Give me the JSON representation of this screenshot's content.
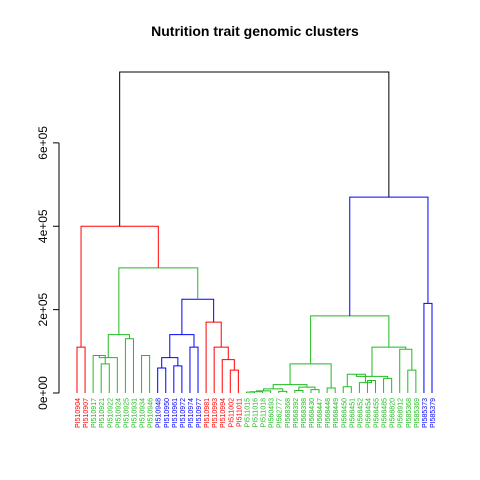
{
  "chart_data": {
    "type": "dendrogram",
    "title": "Nutrition trait genomic clusters",
    "ylim": [
      0,
      780000
    ],
    "y_ticks": [
      {
        "value": 0,
        "label": "0e+00"
      },
      {
        "value": 200000,
        "label": "2e+05"
      },
      {
        "value": 400000,
        "label": "4e+05"
      },
      {
        "value": 600000,
        "label": "6e+05"
      }
    ],
    "colors": {
      "red": "#ff0000",
      "green": "#22bb22",
      "blue": "#0000ff",
      "black": "#000000"
    },
    "leaves": [
      {
        "label": "PI510904",
        "color": "red"
      },
      {
        "label": "PI510907",
        "color": "red"
      },
      {
        "label": "PI510917",
        "color": "green"
      },
      {
        "label": "PI510921",
        "color": "green"
      },
      {
        "label": "PI510922",
        "color": "green"
      },
      {
        "label": "PI510924",
        "color": "green"
      },
      {
        "label": "PI510925",
        "color": "green"
      },
      {
        "label": "PI510931",
        "color": "green"
      },
      {
        "label": "PI510934",
        "color": "green"
      },
      {
        "label": "PI510946",
        "color": "green"
      },
      {
        "label": "PI510948",
        "color": "blue"
      },
      {
        "label": "PI510950",
        "color": "blue"
      },
      {
        "label": "PI510961",
        "color": "blue"
      },
      {
        "label": "PI510972",
        "color": "blue"
      },
      {
        "label": "PI510974",
        "color": "blue"
      },
      {
        "label": "PI510977",
        "color": "blue"
      },
      {
        "label": "PI510981",
        "color": "red"
      },
      {
        "label": "PI510993",
        "color": "red"
      },
      {
        "label": "PI510994",
        "color": "red"
      },
      {
        "label": "PI511002",
        "color": "red"
      },
      {
        "label": "PI511011",
        "color": "red"
      },
      {
        "label": "PI511015",
        "color": "green"
      },
      {
        "label": "PI511016",
        "color": "green"
      },
      {
        "label": "PI511018",
        "color": "green"
      },
      {
        "label": "PI560493",
        "color": "green"
      },
      {
        "label": "PI562777",
        "color": "green"
      },
      {
        "label": "PI568368",
        "color": "green"
      },
      {
        "label": "PI568392",
        "color": "green"
      },
      {
        "label": "PI568398",
        "color": "green"
      },
      {
        "label": "PI568430",
        "color": "green"
      },
      {
        "label": "PI568447",
        "color": "green"
      },
      {
        "label": "PI568448",
        "color": "green"
      },
      {
        "label": "PI568449",
        "color": "green"
      },
      {
        "label": "PI568450",
        "color": "green"
      },
      {
        "label": "PI568451",
        "color": "green"
      },
      {
        "label": "PI568452",
        "color": "green"
      },
      {
        "label": "PI568454",
        "color": "green"
      },
      {
        "label": "PI568455",
        "color": "green"
      },
      {
        "label": "PI568485",
        "color": "green"
      },
      {
        "label": "PI568820",
        "color": "green"
      },
      {
        "label": "PI568912",
        "color": "green"
      },
      {
        "label": "PI585368",
        "color": "green"
      },
      {
        "label": "PI585369",
        "color": "green"
      },
      {
        "label": "PI585373",
        "color": "blue"
      },
      {
        "label": "PI585379",
        "color": "blue"
      }
    ],
    "merges": [
      {
        "a": 0,
        "b": 1,
        "height": 110000,
        "color": "red"
      },
      {
        "a": 3,
        "b": 4,
        "height": 70000,
        "color": "green"
      },
      {
        "a": 2,
        "b": "m:1",
        "height": 90000,
        "color": "green"
      },
      {
        "a": 5,
        "b": "m:2",
        "height": 85000,
        "color": "green"
      },
      {
        "a": 6,
        "b": 7,
        "height": 130000,
        "color": "green"
      },
      {
        "a": 8,
        "b": 9,
        "height": 90000,
        "color": "green"
      },
      {
        "a": 8,
        "b": 9,
        "height": 0,
        "color": "green",
        "skip": true
      },
      {
        "a": "m:3",
        "b": "m:4",
        "height": 140000,
        "color": "green"
      },
      {
        "a": 10,
        "b": 11,
        "height": 60000,
        "color": "blue"
      },
      {
        "a": 12,
        "b": 13,
        "height": 65000,
        "color": "blue"
      },
      {
        "a": "m:8",
        "b": "m:9",
        "height": 85000,
        "color": "blue"
      },
      {
        "a": 14,
        "b": 15,
        "height": 110000,
        "color": "blue"
      },
      {
        "a": "m:10",
        "b": "m:11",
        "height": 140000,
        "color": "blue"
      },
      {
        "a": 19,
        "b": 20,
        "height": 55000,
        "color": "red"
      },
      {
        "a": 18,
        "b": "m:13",
        "height": 80000,
        "color": "red"
      },
      {
        "a": 17,
        "b": "m:14",
        "height": 110000,
        "color": "red"
      },
      {
        "a": 16,
        "b": "m:15",
        "height": 170000,
        "color": "red"
      },
      {
        "a": "m:12",
        "b": "m:16",
        "height": 225000,
        "color": "blue"
      },
      {
        "a": "m:7",
        "b": "m:17",
        "height": 300000,
        "color": "green"
      },
      {
        "a": "m:0",
        "b": "m:18",
        "height": 400000,
        "color": "red"
      },
      {
        "a": 21,
        "b": 22,
        "height": 2000,
        "color": "green"
      },
      {
        "a": 23,
        "b": "m:20",
        "height": 3000,
        "color": "green"
      },
      {
        "a": 24,
        "b": "m:21",
        "height": 5000,
        "color": "green"
      },
      {
        "a": 25,
        "b": 26,
        "height": 4000,
        "color": "green"
      },
      {
        "a": "m:22",
        "b": "m:23",
        "height": 10000,
        "color": "green"
      },
      {
        "a": 27,
        "b": 28,
        "height": 6000,
        "color": "green"
      },
      {
        "a": 29,
        "b": 30,
        "height": 8000,
        "color": "green"
      },
      {
        "a": "m:25",
        "b": "m:26",
        "height": 14000,
        "color": "green"
      },
      {
        "a": "m:24",
        "b": "m:27",
        "height": 20000,
        "color": "green"
      },
      {
        "a": 31,
        "b": 32,
        "height": 12000,
        "color": "green"
      },
      {
        "a": "m:28",
        "b": "m:29",
        "height": 70000,
        "color": "green"
      },
      {
        "a": 33,
        "b": 34,
        "height": 15000,
        "color": "green"
      },
      {
        "a": 36,
        "b": 37,
        "height": 30000,
        "color": "green"
      },
      {
        "a": 35,
        "b": "m:32",
        "height": 25000,
        "color": "green"
      },
      {
        "a": "m:31",
        "b": "m:33",
        "height": 45000,
        "color": "green"
      },
      {
        "a": 38,
        "b": 39,
        "height": 35000,
        "color": "green"
      },
      {
        "a": "m:34",
        "b": "m:35",
        "height": 40000,
        "color": "green"
      },
      {
        "a": 41,
        "b": 42,
        "height": 55000,
        "color": "green"
      },
      {
        "a": 40,
        "b": "m:37",
        "height": 105000,
        "color": "green"
      },
      {
        "a": "m:36",
        "b": "m:38",
        "height": 110000,
        "color": "green"
      },
      {
        "a": "m:30",
        "b": "m:39",
        "height": 185000,
        "color": "green"
      },
      {
        "a": 43,
        "b": 44,
        "height": 215000,
        "color": "blue"
      },
      {
        "a": "m:40",
        "b": "m:41",
        "height": 470000,
        "color": "blue"
      },
      {
        "a": "m:19",
        "b": "m:42",
        "height": 770000,
        "color": "black"
      }
    ]
  }
}
